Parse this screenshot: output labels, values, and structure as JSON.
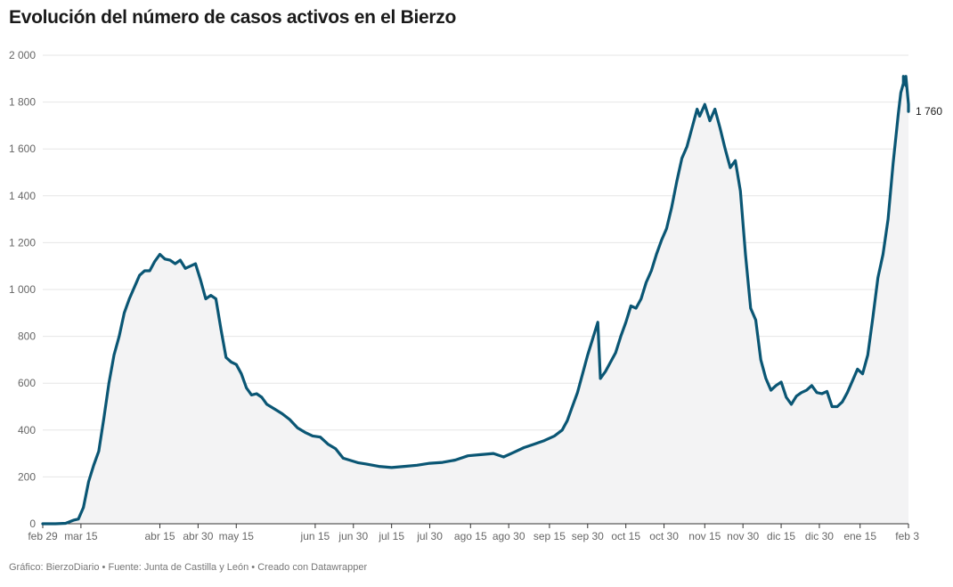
{
  "title": "Evolución del número de casos activos en el Bierzo",
  "footer": {
    "credit": "Gráfico: BierzoDiario",
    "source": "Fuente: Junta de Castilla y León",
    "tool": "Creado con Datawrapper",
    "separator": "•"
  },
  "colors": {
    "line": "#0a5674",
    "area": "#f3f3f4",
    "grid": "#e6e6e6",
    "axis": "#333333"
  },
  "chart_data": {
    "type": "area",
    "title": "Evolución del número de casos activos en el Bierzo",
    "xlabel": "",
    "ylabel": "",
    "ylim": [
      0,
      2000
    ],
    "y_ticks": [
      0,
      200,
      400,
      600,
      800,
      1000,
      1200,
      1400,
      1600,
      1800,
      2000
    ],
    "y_tick_labels": [
      "0",
      "200",
      "400",
      "600",
      "800",
      "1 000",
      "1 200",
      "1 400",
      "1 600",
      "1 800",
      "2 000"
    ],
    "x_range": [
      "2020-02-29",
      "2021-02-03"
    ],
    "x_ticks": [
      {
        "date": "2020-02-29",
        "label": "feb 29"
      },
      {
        "date": "2020-03-15",
        "label": "mar 15"
      },
      {
        "date": "2020-04-15",
        "label": "abr 15"
      },
      {
        "date": "2020-04-30",
        "label": "abr 30"
      },
      {
        "date": "2020-05-15",
        "label": "may 15"
      },
      {
        "date": "2020-06-15",
        "label": "jun 15"
      },
      {
        "date": "2020-06-30",
        "label": "jun 30"
      },
      {
        "date": "2020-07-15",
        "label": "jul 15"
      },
      {
        "date": "2020-07-30",
        "label": "jul 30"
      },
      {
        "date": "2020-08-15",
        "label": "ago 15"
      },
      {
        "date": "2020-08-30",
        "label": "ago 30"
      },
      {
        "date": "2020-09-15",
        "label": "sep 15"
      },
      {
        "date": "2020-09-30",
        "label": "sep 30"
      },
      {
        "date": "2020-10-15",
        "label": "oct 15"
      },
      {
        "date": "2020-10-30",
        "label": "oct 30"
      },
      {
        "date": "2020-11-15",
        "label": "nov 15"
      },
      {
        "date": "2020-11-30",
        "label": "nov 30"
      },
      {
        "date": "2020-12-15",
        "label": "dic 15"
      },
      {
        "date": "2020-12-30",
        "label": "dic 30"
      },
      {
        "date": "2021-01-15",
        "label": "ene 15"
      },
      {
        "date": "2021-02-03",
        "label": "feb 3"
      }
    ],
    "grid": true,
    "last_value_label": "1 760",
    "series": [
      {
        "points": [
          [
            "2020-02-29",
            0
          ],
          [
            "2020-03-05",
            0
          ],
          [
            "2020-03-09",
            2
          ],
          [
            "2020-03-12",
            15
          ],
          [
            "2020-03-14",
            20
          ],
          [
            "2020-03-16",
            70
          ],
          [
            "2020-03-18",
            180
          ],
          [
            "2020-03-20",
            250
          ],
          [
            "2020-03-22",
            310
          ],
          [
            "2020-03-24",
            450
          ],
          [
            "2020-03-26",
            600
          ],
          [
            "2020-03-28",
            720
          ],
          [
            "2020-03-30",
            800
          ],
          [
            "2020-04-01",
            900
          ],
          [
            "2020-04-03",
            960
          ],
          [
            "2020-04-05",
            1010
          ],
          [
            "2020-04-07",
            1060
          ],
          [
            "2020-04-09",
            1080
          ],
          [
            "2020-04-11",
            1080
          ],
          [
            "2020-04-13",
            1120
          ],
          [
            "2020-04-15",
            1150
          ],
          [
            "2020-04-17",
            1130
          ],
          [
            "2020-04-19",
            1125
          ],
          [
            "2020-04-21",
            1110
          ],
          [
            "2020-04-23",
            1125
          ],
          [
            "2020-04-25",
            1090
          ],
          [
            "2020-04-27",
            1100
          ],
          [
            "2020-04-29",
            1110
          ],
          [
            "2020-05-01",
            1040
          ],
          [
            "2020-05-03",
            960
          ],
          [
            "2020-05-05",
            975
          ],
          [
            "2020-05-07",
            960
          ],
          [
            "2020-05-09",
            830
          ],
          [
            "2020-05-11",
            710
          ],
          [
            "2020-05-13",
            690
          ],
          [
            "2020-05-15",
            680
          ],
          [
            "2020-05-17",
            640
          ],
          [
            "2020-05-19",
            580
          ],
          [
            "2020-05-21",
            550
          ],
          [
            "2020-05-23",
            555
          ],
          [
            "2020-05-25",
            540
          ],
          [
            "2020-05-27",
            510
          ],
          [
            "2020-05-30",
            490
          ],
          [
            "2020-06-02",
            470
          ],
          [
            "2020-06-05",
            445
          ],
          [
            "2020-06-08",
            410
          ],
          [
            "2020-06-11",
            390
          ],
          [
            "2020-06-14",
            375
          ],
          [
            "2020-06-17",
            370
          ],
          [
            "2020-06-20",
            340
          ],
          [
            "2020-06-23",
            320
          ],
          [
            "2020-06-26",
            280
          ],
          [
            "2020-06-29",
            270
          ],
          [
            "2020-07-02",
            260
          ],
          [
            "2020-07-05",
            255
          ],
          [
            "2020-07-10",
            245
          ],
          [
            "2020-07-15",
            240
          ],
          [
            "2020-07-20",
            245
          ],
          [
            "2020-07-25",
            250
          ],
          [
            "2020-07-30",
            258
          ],
          [
            "2020-08-04",
            262
          ],
          [
            "2020-08-09",
            272
          ],
          [
            "2020-08-14",
            290
          ],
          [
            "2020-08-19",
            295
          ],
          [
            "2020-08-24",
            300
          ],
          [
            "2020-08-28",
            285
          ],
          [
            "2020-09-01",
            305
          ],
          [
            "2020-09-05",
            325
          ],
          [
            "2020-09-09",
            340
          ],
          [
            "2020-09-13",
            355
          ],
          [
            "2020-09-17",
            375
          ],
          [
            "2020-09-20",
            400
          ],
          [
            "2020-09-22",
            440
          ],
          [
            "2020-09-24",
            500
          ],
          [
            "2020-09-26",
            560
          ],
          [
            "2020-09-28",
            640
          ],
          [
            "2020-09-30",
            720
          ],
          [
            "2020-10-02",
            790
          ],
          [
            "2020-10-04",
            860
          ],
          [
            "2020-10-05",
            620
          ],
          [
            "2020-10-07",
            650
          ],
          [
            "2020-10-09",
            690
          ],
          [
            "2020-10-11",
            730
          ],
          [
            "2020-10-13",
            800
          ],
          [
            "2020-10-15",
            860
          ],
          [
            "2020-10-17",
            930
          ],
          [
            "2020-10-19",
            920
          ],
          [
            "2020-10-21",
            960
          ],
          [
            "2020-10-23",
            1030
          ],
          [
            "2020-10-25",
            1080
          ],
          [
            "2020-10-27",
            1150
          ],
          [
            "2020-10-29",
            1210
          ],
          [
            "2020-10-31",
            1260
          ],
          [
            "2020-11-02",
            1350
          ],
          [
            "2020-11-04",
            1460
          ],
          [
            "2020-11-06",
            1560
          ],
          [
            "2020-11-08",
            1610
          ],
          [
            "2020-11-10",
            1690
          ],
          [
            "2020-11-12",
            1770
          ],
          [
            "2020-11-13",
            1740
          ],
          [
            "2020-11-15",
            1790
          ],
          [
            "2020-11-17",
            1720
          ],
          [
            "2020-11-19",
            1770
          ],
          [
            "2020-11-21",
            1690
          ],
          [
            "2020-11-23",
            1600
          ],
          [
            "2020-11-25",
            1520
          ],
          [
            "2020-11-27",
            1550
          ],
          [
            "2020-11-29",
            1420
          ],
          [
            "2020-12-01",
            1150
          ],
          [
            "2020-12-03",
            920
          ],
          [
            "2020-12-05",
            870
          ],
          [
            "2020-12-07",
            700
          ],
          [
            "2020-12-09",
            620
          ],
          [
            "2020-12-11",
            570
          ],
          [
            "2020-12-13",
            590
          ],
          [
            "2020-12-15",
            605
          ],
          [
            "2020-12-17",
            540
          ],
          [
            "2020-12-19",
            510
          ],
          [
            "2020-12-21",
            545
          ],
          [
            "2020-12-23",
            560
          ],
          [
            "2020-12-25",
            570
          ],
          [
            "2020-12-27",
            590
          ],
          [
            "2020-12-29",
            560
          ],
          [
            "2020-12-31",
            555
          ],
          [
            "2021-01-02",
            565
          ],
          [
            "2021-01-04",
            500
          ],
          [
            "2021-01-06",
            500
          ],
          [
            "2021-01-08",
            520
          ],
          [
            "2021-01-10",
            560
          ],
          [
            "2021-01-12",
            610
          ],
          [
            "2021-01-14",
            660
          ],
          [
            "2021-01-16",
            640
          ],
          [
            "2021-01-18",
            720
          ],
          [
            "2021-01-20",
            880
          ],
          [
            "2021-01-22",
            1050
          ],
          [
            "2021-01-24",
            1150
          ],
          [
            "2021-01-26",
            1300
          ],
          [
            "2021-01-28",
            1540
          ],
          [
            "2021-01-30",
            1750
          ],
          [
            "2021-01-31",
            1840
          ],
          [
            "2021-02-01",
            1880
          ],
          [
            "2021-02-01",
            1910
          ],
          [
            "2021-02-02",
            1870
          ],
          [
            "2021-02-02",
            1910
          ],
          [
            "2021-02-03",
            1790
          ],
          [
            "2021-02-03",
            1760
          ]
        ]
      }
    ]
  }
}
